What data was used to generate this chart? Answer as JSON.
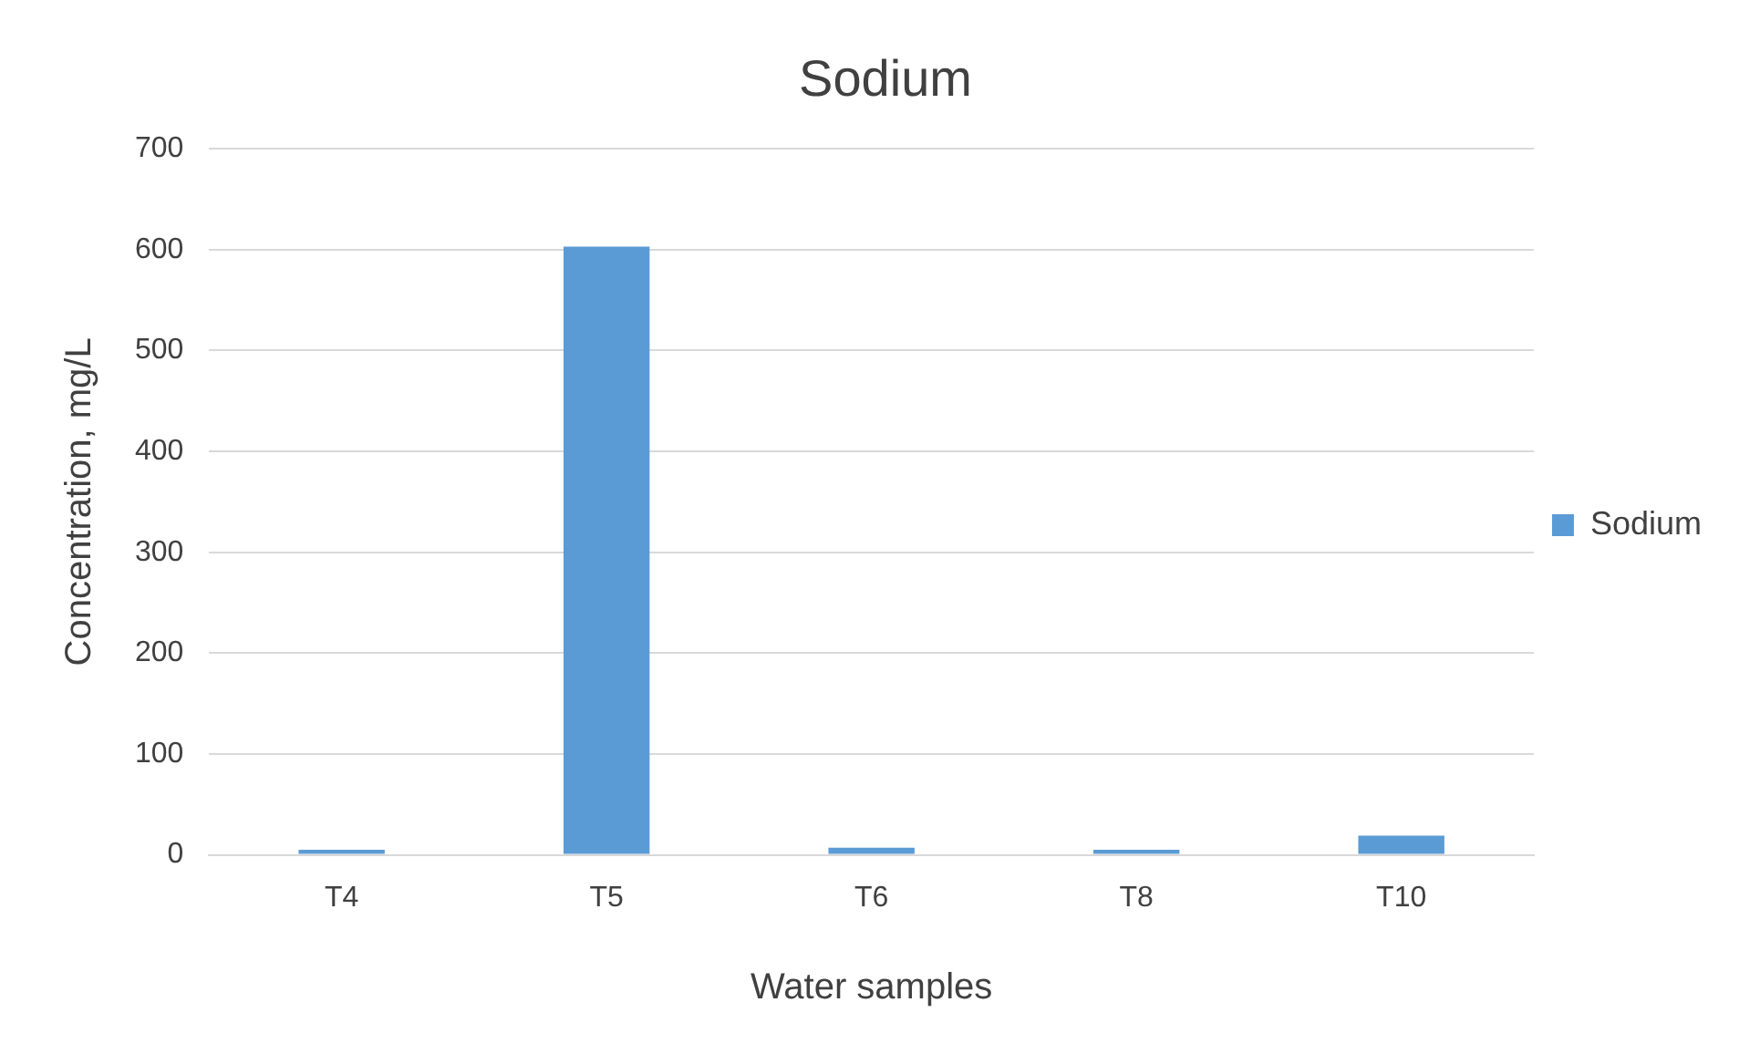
{
  "chart_data": {
    "type": "bar",
    "title": "Sodium",
    "xlabel": "Water samples",
    "ylabel": "Concentration, mg/L",
    "categories": [
      "T4",
      "T5",
      "T6",
      "T8",
      "T10"
    ],
    "series": [
      {
        "name": "Sodium",
        "color": "#5b9bd5",
        "values": [
          5,
          603,
          7,
          5,
          19
        ]
      }
    ],
    "ylim": [
      0,
      700
    ],
    "yticks": [
      0,
      100,
      200,
      300,
      400,
      500,
      600,
      700
    ],
    "grid": "y",
    "legend": "right"
  }
}
